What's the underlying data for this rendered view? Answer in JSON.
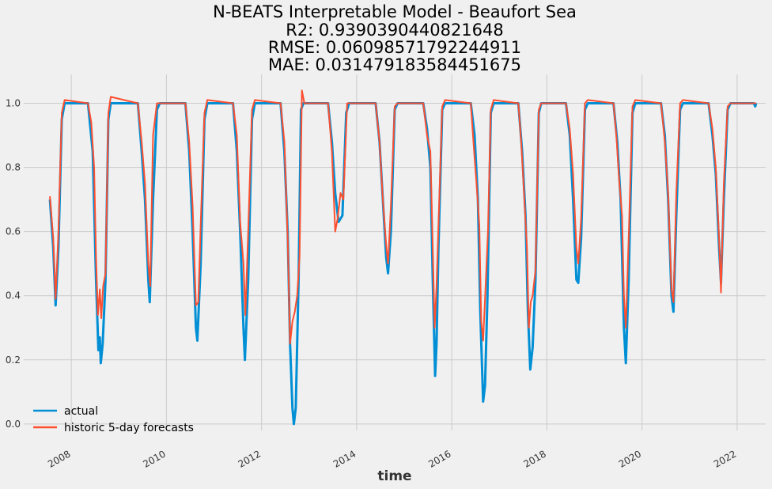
{
  "chart_data": {
    "type": "line",
    "title_lines": [
      "N-BEATS Interpretable Model - Beaufort Sea",
      "R2: 0.9390390440821648",
      "RMSE: 0.06098571792244911",
      "MAE: 0.031479183584451675"
    ],
    "xlabel": "time",
    "ylabel": "",
    "xlim": [
      2007.0,
      2022.6
    ],
    "ylim": [
      -0.02,
      1.09
    ],
    "x_ticks": [
      2008,
      2010,
      2012,
      2014,
      2016,
      2018,
      2020,
      2022
    ],
    "x_tick_labels": [
      "2008",
      "2010",
      "2012",
      "2014",
      "2016",
      "2018",
      "2020",
      "2022"
    ],
    "y_ticks": [
      0.0,
      0.2,
      0.4,
      0.6,
      0.8,
      1.0
    ],
    "y_tick_labels": [
      "0.0",
      "0.2",
      "0.4",
      "0.6",
      "0.8",
      "1.0"
    ],
    "grid": true,
    "legend_position": "lower-left",
    "series": [
      {
        "name": "actual",
        "color": "#008fd5",
        "points": [
          [
            2007.55,
            0.7
          ],
          [
            2007.62,
            0.55
          ],
          [
            2007.67,
            0.37
          ],
          [
            2007.73,
            0.55
          ],
          [
            2007.8,
            0.95
          ],
          [
            2007.86,
            1.0
          ],
          [
            2008.35,
            1.0
          ],
          [
            2008.45,
            0.85
          ],
          [
            2008.52,
            0.45
          ],
          [
            2008.57,
            0.23
          ],
          [
            2008.6,
            0.27
          ],
          [
            2008.62,
            0.19
          ],
          [
            2008.66,
            0.25
          ],
          [
            2008.72,
            0.45
          ],
          [
            2008.78,
            0.95
          ],
          [
            2008.83,
            1.0
          ],
          [
            2009.4,
            1.0
          ],
          [
            2009.48,
            0.85
          ],
          [
            2009.55,
            0.7
          ],
          [
            2009.62,
            0.45
          ],
          [
            2009.65,
            0.38
          ],
          [
            2009.72,
            0.7
          ],
          [
            2009.8,
            0.98
          ],
          [
            2009.86,
            1.0
          ],
          [
            2010.4,
            1.0
          ],
          [
            2010.48,
            0.85
          ],
          [
            2010.55,
            0.6
          ],
          [
            2010.62,
            0.3
          ],
          [
            2010.65,
            0.26
          ],
          [
            2010.72,
            0.5
          ],
          [
            2010.8,
            0.95
          ],
          [
            2010.86,
            1.0
          ],
          [
            2011.4,
            1.0
          ],
          [
            2011.48,
            0.85
          ],
          [
            2011.55,
            0.6
          ],
          [
            2011.62,
            0.3
          ],
          [
            2011.65,
            0.2
          ],
          [
            2011.72,
            0.45
          ],
          [
            2011.8,
            0.95
          ],
          [
            2011.86,
            1.0
          ],
          [
            2012.4,
            1.0
          ],
          [
            2012.48,
            0.85
          ],
          [
            2012.55,
            0.6
          ],
          [
            2012.6,
            0.25
          ],
          [
            2012.65,
            0.05
          ],
          [
            2012.68,
            0.0
          ],
          [
            2012.72,
            0.05
          ],
          [
            2012.78,
            0.45
          ],
          [
            2012.83,
            0.98
          ],
          [
            2012.88,
            1.0
          ],
          [
            2013.4,
            1.0
          ],
          [
            2013.48,
            0.88
          ],
          [
            2013.55,
            0.72
          ],
          [
            2013.62,
            0.63
          ],
          [
            2013.7,
            0.65
          ],
          [
            2013.78,
            0.97
          ],
          [
            2013.84,
            1.0
          ],
          [
            2014.4,
            1.0
          ],
          [
            2014.48,
            0.88
          ],
          [
            2014.55,
            0.7
          ],
          [
            2014.62,
            0.52
          ],
          [
            2014.66,
            0.47
          ],
          [
            2014.72,
            0.6
          ],
          [
            2014.8,
            0.98
          ],
          [
            2014.86,
            1.0
          ],
          [
            2015.4,
            1.0
          ],
          [
            2015.48,
            0.92
          ],
          [
            2015.55,
            0.8
          ],
          [
            2015.6,
            0.45
          ],
          [
            2015.65,
            0.15
          ],
          [
            2015.68,
            0.25
          ],
          [
            2015.72,
            0.55
          ],
          [
            2015.8,
            0.98
          ],
          [
            2015.86,
            1.0
          ],
          [
            2016.4,
            1.0
          ],
          [
            2016.48,
            0.9
          ],
          [
            2016.55,
            0.7
          ],
          [
            2016.6,
            0.35
          ],
          [
            2016.66,
            0.07
          ],
          [
            2016.7,
            0.12
          ],
          [
            2016.75,
            0.4
          ],
          [
            2016.82,
            0.97
          ],
          [
            2016.88,
            1.0
          ],
          [
            2017.4,
            1.0
          ],
          [
            2017.48,
            0.85
          ],
          [
            2017.55,
            0.65
          ],
          [
            2017.6,
            0.35
          ],
          [
            2017.65,
            0.17
          ],
          [
            2017.7,
            0.24
          ],
          [
            2017.76,
            0.45
          ],
          [
            2017.83,
            0.97
          ],
          [
            2017.88,
            1.0
          ],
          [
            2018.4,
            1.0
          ],
          [
            2018.48,
            0.9
          ],
          [
            2018.55,
            0.7
          ],
          [
            2018.62,
            0.45
          ],
          [
            2018.66,
            0.44
          ],
          [
            2018.72,
            0.58
          ],
          [
            2018.8,
            0.98
          ],
          [
            2018.86,
            1.0
          ],
          [
            2019.4,
            1.0
          ],
          [
            2019.48,
            0.88
          ],
          [
            2019.55,
            0.7
          ],
          [
            2019.62,
            0.3
          ],
          [
            2019.66,
            0.19
          ],
          [
            2019.72,
            0.45
          ],
          [
            2019.8,
            0.97
          ],
          [
            2019.86,
            1.0
          ],
          [
            2020.4,
            1.0
          ],
          [
            2020.48,
            0.9
          ],
          [
            2020.55,
            0.7
          ],
          [
            2020.62,
            0.4
          ],
          [
            2020.66,
            0.35
          ],
          [
            2020.72,
            0.65
          ],
          [
            2020.8,
            0.98
          ],
          [
            2020.86,
            1.0
          ],
          [
            2021.4,
            1.0
          ],
          [
            2021.48,
            0.9
          ],
          [
            2021.55,
            0.78
          ],
          [
            2021.62,
            0.55
          ],
          [
            2021.66,
            0.44
          ],
          [
            2021.72,
            0.7
          ],
          [
            2021.8,
            0.98
          ],
          [
            2021.86,
            1.0
          ],
          [
            2022.35,
            1.0
          ],
          [
            2022.38,
            0.99
          ],
          [
            2022.4,
            1.0
          ]
        ]
      },
      {
        "name": "historic 5-day forecasts",
        "color": "#fc4f30",
        "points": [
          [
            2007.55,
            0.71
          ],
          [
            2007.62,
            0.58
          ],
          [
            2007.67,
            0.39
          ],
          [
            2007.73,
            0.6
          ],
          [
            2007.8,
            0.97
          ],
          [
            2007.86,
            1.01
          ],
          [
            2008.35,
            1.0
          ],
          [
            2008.42,
            0.94
          ],
          [
            2008.48,
            0.8
          ],
          [
            2008.52,
            0.52
          ],
          [
            2008.56,
            0.34
          ],
          [
            2008.6,
            0.42
          ],
          [
            2008.63,
            0.33
          ],
          [
            2008.67,
            0.43
          ],
          [
            2008.72,
            0.47
          ],
          [
            2008.78,
            0.97
          ],
          [
            2008.83,
            1.02
          ],
          [
            2009.4,
            1.0
          ],
          [
            2009.48,
            0.88
          ],
          [
            2009.55,
            0.75
          ],
          [
            2009.62,
            0.5
          ],
          [
            2009.66,
            0.43
          ],
          [
            2009.72,
            0.9
          ],
          [
            2009.8,
            1.0
          ],
          [
            2009.86,
            1.0
          ],
          [
            2010.4,
            1.0
          ],
          [
            2010.48,
            0.88
          ],
          [
            2010.55,
            0.68
          ],
          [
            2010.62,
            0.37
          ],
          [
            2010.67,
            0.38
          ],
          [
            2010.72,
            0.62
          ],
          [
            2010.8,
            0.97
          ],
          [
            2010.86,
            1.01
          ],
          [
            2011.4,
            1.0
          ],
          [
            2011.48,
            0.9
          ],
          [
            2011.55,
            0.63
          ],
          [
            2011.62,
            0.5
          ],
          [
            2011.66,
            0.34
          ],
          [
            2011.72,
            0.6
          ],
          [
            2011.8,
            0.98
          ],
          [
            2011.86,
            1.01
          ],
          [
            2012.4,
            1.0
          ],
          [
            2012.48,
            0.88
          ],
          [
            2012.55,
            0.58
          ],
          [
            2012.6,
            0.25
          ],
          [
            2012.65,
            0.32
          ],
          [
            2012.7,
            0.35
          ],
          [
            2012.75,
            0.4
          ],
          [
            2012.8,
            0.52
          ],
          [
            2012.85,
            1.04
          ],
          [
            2012.9,
            1.0
          ],
          [
            2013.4,
            1.0
          ],
          [
            2013.48,
            0.85
          ],
          [
            2013.55,
            0.6
          ],
          [
            2013.6,
            0.64
          ],
          [
            2013.66,
            0.72
          ],
          [
            2013.72,
            0.7
          ],
          [
            2013.8,
            1.0
          ],
          [
            2013.86,
            1.0
          ],
          [
            2014.4,
            1.0
          ],
          [
            2014.48,
            0.88
          ],
          [
            2014.55,
            0.7
          ],
          [
            2014.62,
            0.56
          ],
          [
            2014.66,
            0.5
          ],
          [
            2014.72,
            0.68
          ],
          [
            2014.8,
            0.99
          ],
          [
            2014.86,
            1.0
          ],
          [
            2015.4,
            1.0
          ],
          [
            2015.48,
            0.9
          ],
          [
            2015.55,
            0.85
          ],
          [
            2015.6,
            0.55
          ],
          [
            2015.64,
            0.3
          ],
          [
            2015.68,
            0.43
          ],
          [
            2015.72,
            0.62
          ],
          [
            2015.8,
            0.99
          ],
          [
            2015.86,
            1.01
          ],
          [
            2016.4,
            1.0
          ],
          [
            2016.46,
            0.87
          ],
          [
            2016.52,
            0.75
          ],
          [
            2016.58,
            0.62
          ],
          [
            2016.62,
            0.32
          ],
          [
            2016.66,
            0.26
          ],
          [
            2016.7,
            0.39
          ],
          [
            2016.76,
            0.6
          ],
          [
            2016.82,
            0.98
          ],
          [
            2016.88,
            1.01
          ],
          [
            2017.4,
            1.0
          ],
          [
            2017.46,
            0.88
          ],
          [
            2017.52,
            0.72
          ],
          [
            2017.58,
            0.55
          ],
          [
            2017.62,
            0.3
          ],
          [
            2017.66,
            0.38
          ],
          [
            2017.7,
            0.4
          ],
          [
            2017.76,
            0.48
          ],
          [
            2017.83,
            0.98
          ],
          [
            2017.88,
            1.0
          ],
          [
            2018.4,
            1.0
          ],
          [
            2018.48,
            0.92
          ],
          [
            2018.55,
            0.78
          ],
          [
            2018.62,
            0.55
          ],
          [
            2018.66,
            0.5
          ],
          [
            2018.72,
            0.64
          ],
          [
            2018.8,
            1.0
          ],
          [
            2018.86,
            1.01
          ],
          [
            2019.4,
            1.0
          ],
          [
            2019.46,
            0.9
          ],
          [
            2019.52,
            0.76
          ],
          [
            2019.58,
            0.65
          ],
          [
            2019.62,
            0.4
          ],
          [
            2019.66,
            0.3
          ],
          [
            2019.72,
            0.58
          ],
          [
            2019.8,
            0.99
          ],
          [
            2019.86,
            1.01
          ],
          [
            2020.4,
            1.0
          ],
          [
            2020.48,
            0.88
          ],
          [
            2020.55,
            0.72
          ],
          [
            2020.62,
            0.42
          ],
          [
            2020.66,
            0.38
          ],
          [
            2020.72,
            0.72
          ],
          [
            2020.8,
            1.0
          ],
          [
            2020.86,
            1.01
          ],
          [
            2021.4,
            1.0
          ],
          [
            2021.48,
            0.92
          ],
          [
            2021.55,
            0.8
          ],
          [
            2021.62,
            0.58
          ],
          [
            2021.66,
            0.41
          ],
          [
            2021.72,
            0.75
          ],
          [
            2021.8,
            0.99
          ],
          [
            2021.86,
            1.0
          ],
          [
            2022.35,
            1.0
          ],
          [
            2022.4,
            1.0
          ]
        ]
      }
    ]
  }
}
